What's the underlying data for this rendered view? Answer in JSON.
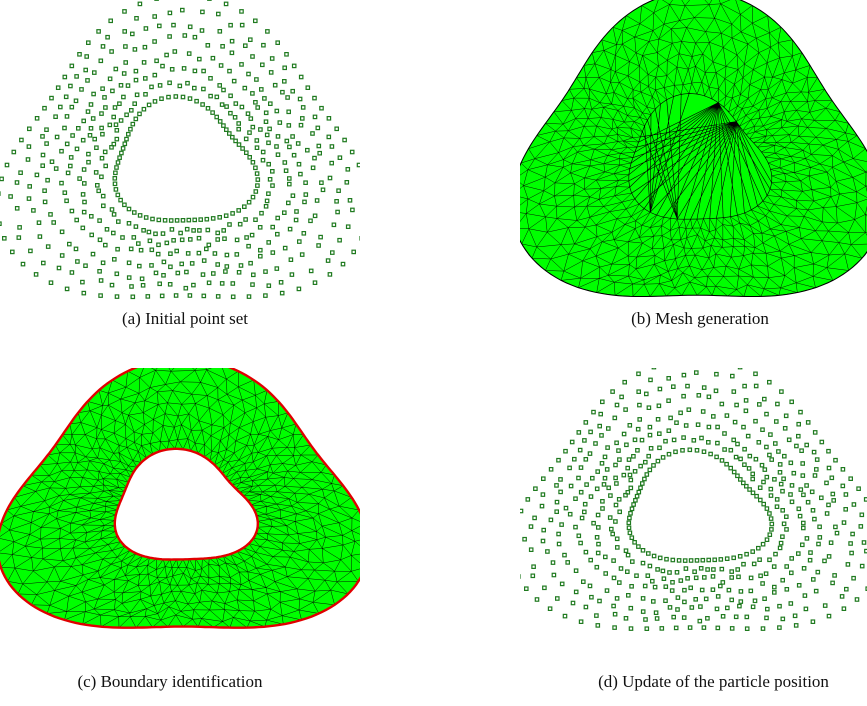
{
  "figure": {
    "panels": [
      {
        "id": "a",
        "label": "(a)",
        "caption": "Initial point set",
        "view": "points"
      },
      {
        "id": "b",
        "label": "(b)",
        "caption": "Mesh generation",
        "view": "mesh-filled-hole"
      },
      {
        "id": "c",
        "label": "(c)",
        "caption": "Boundary identification",
        "view": "mesh-with-boundary"
      },
      {
        "id": "d",
        "label": "(d)",
        "caption": "Update of the particle position",
        "view": "points"
      }
    ],
    "colors": {
      "particle": "#1f7a1f",
      "mesh_fill": "#00ff00",
      "mesh_edge": "#000000",
      "boundary": "#e00000"
    }
  }
}
